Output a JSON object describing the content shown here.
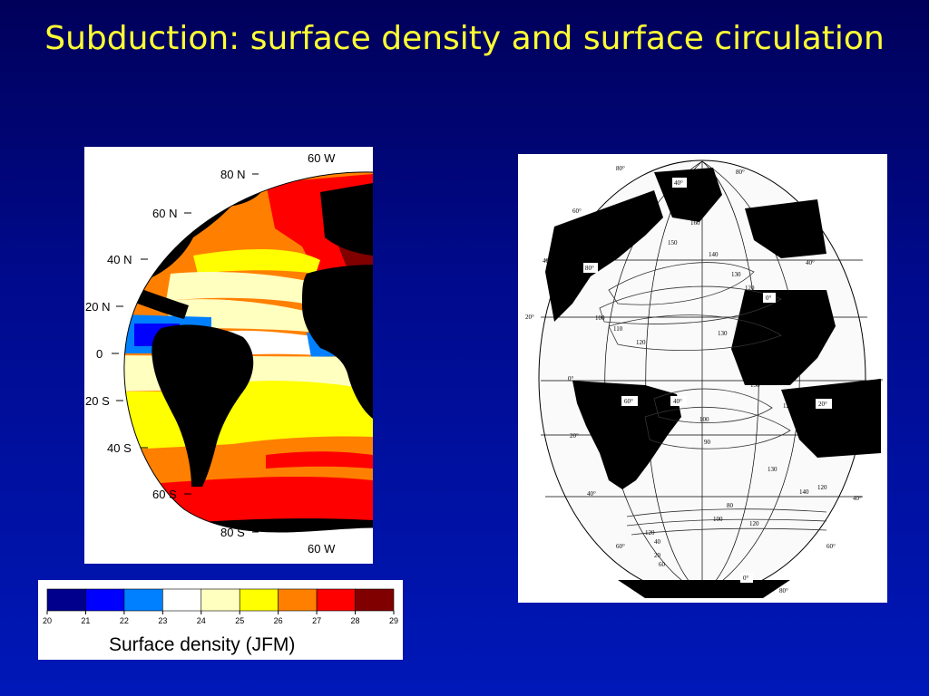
{
  "slide": {
    "title": "Subduction: surface density and surface circulation"
  },
  "density_map": {
    "labels": {
      "lon_top": "60 W",
      "lon_bottom": "60 W",
      "lat_80n": "80 N",
      "lat_60n": "60 N",
      "lat_40n": "40 N",
      "lat_20n": "20 N",
      "lat_0": "0",
      "lat_20s": "20 S",
      "lat_40s": "40 S",
      "lat_60s": "60 S",
      "lat_80s": "80 S"
    },
    "colors": {
      "c20": "#00008c",
      "c21": "#0000ff",
      "c22": "#0080ff",
      "c23": "#ffffff",
      "c24": "#ffffc0",
      "c25": "#ffff00",
      "c26": "#ff8000",
      "c27": "#ff0000",
      "c28": "#800000"
    }
  },
  "colorbar": {
    "ticks": [
      "20",
      "21",
      "22",
      "23",
      "24",
      "25",
      "26",
      "27",
      "28",
      "29"
    ],
    "colors": [
      "#00008c",
      "#0000ff",
      "#0080ff",
      "#ffffff",
      "#ffffc0",
      "#ffff00",
      "#ff8000",
      "#ff0000",
      "#800000"
    ],
    "title": "Surface density (JFM)"
  },
  "circulation_map": {
    "grid_labels": {
      "top_80_left": "80°",
      "top_40": "40°",
      "top_80_right": "80°",
      "left_60": "60°",
      "right_60": "60°",
      "left_40": "40°",
      "right_40": "40°",
      "left_20": "20°",
      "right_20": "20°",
      "box_80": "80°",
      "box_0_africa": "0°",
      "left_0": "0°",
      "right_0": "0°",
      "box_60": "60°",
      "box_40": "40°",
      "box_20": "20°",
      "left_20s": "20°",
      "right_20s": "20°",
      "left_40s": "40°",
      "right_40s": "40°",
      "left_60s": "60°",
      "right_60s": "60°",
      "bottom_80_left": "80°",
      "bottom_0": "0°",
      "bottom_80_right": "80°"
    },
    "contour_values": {
      "n1": "160",
      "n2": "150",
      "n3": "140",
      "n4": "130",
      "n5": "120",
      "n6": "110",
      "n7": "100",
      "n8": "130",
      "n9": "140",
      "n10": "120",
      "s1": "130",
      "s2": "120",
      "s3": "100",
      "s4": "90",
      "s5": "80",
      "s6": "100",
      "s7": "120",
      "s8": "130",
      "s9": "120",
      "s10": "60",
      "s11": "40",
      "s12": "20",
      "s13": "140",
      "s14": "120"
    }
  }
}
